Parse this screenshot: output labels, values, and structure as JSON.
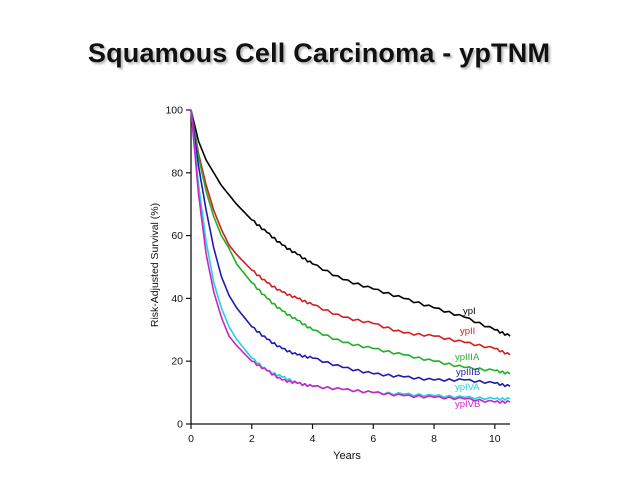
{
  "slide": {
    "title": "Squamous Cell Carcinoma - ypTNM"
  },
  "chart_data": {
    "type": "line",
    "title": "Squamous Cell Carcinoma - ypTNM",
    "xlabel": "Years",
    "ylabel": "Risk-Adjusted Survival (%)",
    "xlim": [
      0,
      10.5
    ],
    "ylim": [
      0,
      100
    ],
    "xticks": [
      0,
      2,
      4,
      6,
      8,
      10
    ],
    "yticks": [
      0,
      20,
      40,
      60,
      80,
      100
    ],
    "grid": false,
    "legend": "inline labels at right end of curves",
    "x": [
      0,
      0.25,
      0.5,
      0.75,
      1,
      1.25,
      1.5,
      2,
      2.5,
      3,
      3.5,
      4,
      5,
      6,
      7,
      8,
      9,
      10,
      10.5
    ],
    "series": [
      {
        "name": "ypI",
        "color": "#000000",
        "values": [
          100,
          90,
          84,
          80,
          76,
          73,
          70,
          65,
          61,
          57,
          54,
          51,
          46,
          43,
          40,
          37,
          34,
          30,
          28
        ]
      },
      {
        "name": "ypII",
        "color": "#d81b1b",
        "values": [
          100,
          86,
          76,
          68,
          62,
          57,
          54,
          49,
          45,
          42,
          40,
          38,
          34,
          32,
          29,
          28,
          26,
          24,
          22
        ]
      },
      {
        "name": "ypIIIA",
        "color": "#21b024",
        "values": [
          100,
          85,
          74,
          66,
          60,
          56,
          51,
          45,
          40,
          36,
          33,
          30,
          26,
          24,
          22,
          20,
          18,
          17,
          16
        ]
      },
      {
        "name": "ypIIIB",
        "color": "#1c1cb0",
        "values": [
          100,
          82,
          68,
          56,
          47,
          41,
          37,
          31,
          27,
          24,
          22,
          21,
          18,
          16,
          15,
          14,
          14,
          13,
          12
        ]
      },
      {
        "name": "ypIVA",
        "color": "#22d3dd",
        "values": [
          100,
          76,
          58,
          45,
          37,
          31,
          27,
          21,
          17,
          15,
          13,
          12,
          11,
          10,
          9.5,
          9,
          8.5,
          8,
          8
        ]
      },
      {
        "name": "ypIVB",
        "color": "#c923c9",
        "values": [
          100,
          73,
          54,
          42,
          34,
          28,
          25,
          20,
          17,
          14,
          13,
          12,
          11,
          10,
          9,
          8.5,
          8,
          7,
          7
        ]
      }
    ]
  }
}
